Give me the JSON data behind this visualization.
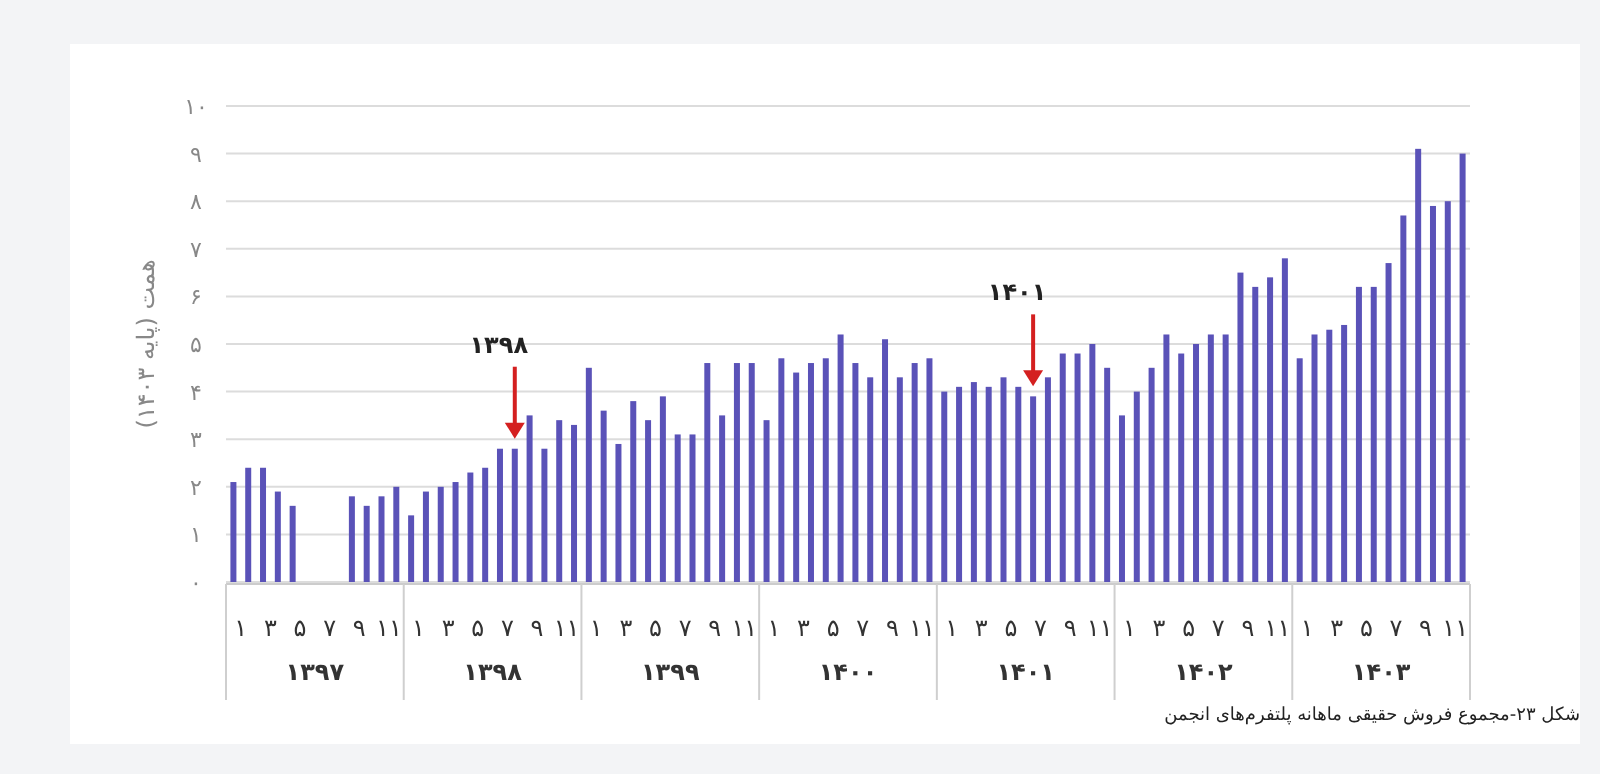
{
  "chart_data": {
    "type": "bar",
    "ylabel": "همت (پایه ۱۴۰۳)",
    "categories": [
      "۱",
      null,
      "۳",
      null,
      "۵",
      null,
      "۷",
      null,
      "۹",
      null,
      "۱۱",
      null,
      "۱",
      null,
      "۳",
      null,
      "۵",
      null,
      "۷",
      null,
      "۹",
      null,
      "۱۱",
      null,
      "۱",
      null,
      "۳",
      null,
      "۵",
      null,
      "۷",
      null,
      "۹",
      null,
      "۱۱",
      null,
      "۱",
      null,
      "۳",
      null,
      "۵",
      null,
      "۷",
      null,
      "۹",
      null,
      "۱۱",
      null,
      "۱",
      null,
      "۳",
      null,
      "۵",
      null,
      "۷",
      null,
      "۹",
      null,
      "۱۱",
      null,
      "۱",
      null,
      "۳",
      null,
      "۵",
      null,
      "۷",
      null,
      "۹",
      null,
      "۱۱",
      null,
      "۱",
      null,
      "۳",
      null,
      "۵",
      null,
      "۷",
      null,
      "۹",
      null,
      "۱۱",
      null
    ],
    "series": [
      {
        "color": "#5a52b8",
        "values": [
          2.1,
          2.4,
          2.4,
          1.9,
          1.6,
          null,
          null,
          null,
          1.8,
          1.6,
          1.8,
          2.0,
          1.4,
          1.9,
          2.0,
          2.1,
          2.3,
          2.4,
          2.8,
          2.8,
          3.5,
          2.8,
          3.4,
          3.3,
          4.5,
          3.6,
          2.9,
          3.8,
          3.4,
          3.9,
          3.1,
          3.1,
          4.6,
          3.5,
          4.6,
          4.6,
          3.4,
          4.7,
          4.4,
          4.6,
          4.7,
          5.2,
          4.6,
          4.3,
          5.1,
          4.3,
          4.6,
          4.7,
          4.0,
          4.1,
          4.2,
          4.1,
          4.3,
          4.1,
          3.9,
          4.3,
          4.8,
          4.8,
          5.0,
          4.5,
          3.5,
          4.0,
          4.5,
          5.2,
          4.8,
          5.0,
          5.2,
          5.2,
          6.5,
          6.2,
          6.4,
          6.8,
          4.7,
          5.2,
          5.3,
          5.4,
          6.2,
          6.2,
          6.7,
          7.7,
          9.1,
          7.9,
          8.0,
          9.0
        ]
      }
    ],
    "ylim": [
      0,
      10
    ],
    "yticks": [
      {
        "value": 0,
        "label": "۰"
      },
      {
        "value": 1,
        "label": "۱"
      },
      {
        "value": 2,
        "label": "۲"
      },
      {
        "value": 3,
        "label": "۳"
      },
      {
        "value": 4,
        "label": "۴"
      },
      {
        "value": 5,
        "label": "۵"
      },
      {
        "value": 6,
        "label": "۶"
      },
      {
        "value": 7,
        "label": "۷"
      },
      {
        "value": 8,
        "label": "۸"
      },
      {
        "value": 9,
        "label": "۹"
      },
      {
        "value": 10,
        "label": "۱۰"
      }
    ],
    "grid": "y",
    "annotations": [
      "۱۳۹۷",
      "۱۳۹۸",
      "۱۳۹۹",
      "۱۴۰۰",
      "۱۴۰۱",
      "۱۴۰۲",
      "۱۴۰۳",
      "۱۳۹۸",
      "۱۴۰۱",
      "شکل ۲۳-مجموع فروش حقیقی ماهانه پلتفرم‌های انجمن"
    ]
  }
}
